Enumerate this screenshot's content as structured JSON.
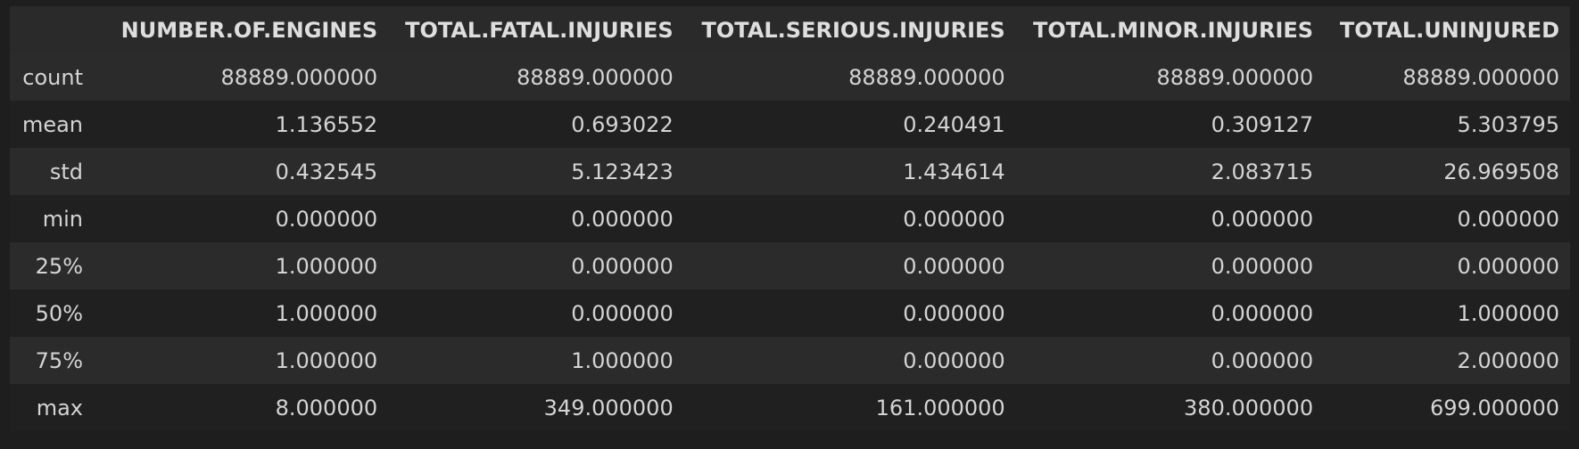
{
  "table": {
    "corner": "",
    "columns": [
      "NUMBER.OF.ENGINES",
      "TOTAL.FATAL.INJURIES",
      "TOTAL.SERIOUS.INJURIES",
      "TOTAL.MINOR.INJURIES",
      "TOTAL.UNINJURED"
    ],
    "rows": [
      {
        "label": "count",
        "values": [
          "88889.000000",
          "88889.000000",
          "88889.000000",
          "88889.000000",
          "88889.000000"
        ]
      },
      {
        "label": "mean",
        "values": [
          "1.136552",
          "0.693022",
          "0.240491",
          "0.309127",
          "5.303795"
        ]
      },
      {
        "label": "std",
        "values": [
          "0.432545",
          "5.123423",
          "1.434614",
          "2.083715",
          "26.969508"
        ]
      },
      {
        "label": "min",
        "values": [
          "0.000000",
          "0.000000",
          "0.000000",
          "0.000000",
          "0.000000"
        ]
      },
      {
        "label": "25%",
        "values": [
          "1.000000",
          "0.000000",
          "0.000000",
          "0.000000",
          "0.000000"
        ]
      },
      {
        "label": "50%",
        "values": [
          "1.000000",
          "0.000000",
          "0.000000",
          "0.000000",
          "1.000000"
        ]
      },
      {
        "label": "75%",
        "values": [
          "1.000000",
          "1.000000",
          "0.000000",
          "0.000000",
          "2.000000"
        ]
      },
      {
        "label": "max",
        "values": [
          "8.000000",
          "349.000000",
          "161.000000",
          "380.000000",
          "699.000000"
        ]
      }
    ]
  },
  "colors": {
    "background": "#1e1e1e",
    "header_background": "#2a2a2a",
    "row_odd": "#2b2b2b",
    "row_even": "#202020",
    "text": "#d4d4d4"
  }
}
